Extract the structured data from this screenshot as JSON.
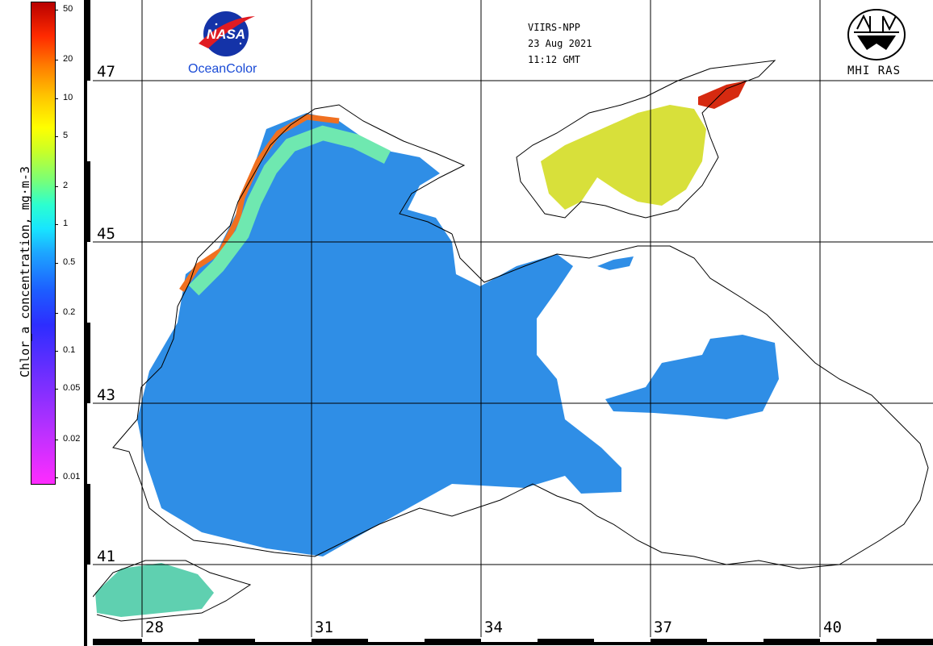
{
  "header": {
    "sensor": "VIIRS-NPP",
    "date": "23 Aug 2021",
    "time": "11:12 GMT"
  },
  "logos": {
    "left_caption": "OceanColor",
    "left_logo_text": "NASA",
    "right_caption": "MHI RAS"
  },
  "colorbar": {
    "title": "Chlor_a concentration, mg·m-3",
    "ticks": [
      "50",
      "20",
      "10",
      "5",
      "2",
      "1",
      "0.5",
      "0.2",
      "0.1",
      "0.05",
      "0.02",
      "0.01"
    ],
    "colors": [
      "#ff2cff",
      "#7f2fff",
      "#2d2dff",
      "#1da6ff",
      "#2cffcf",
      "#c8ff28",
      "#ffff00",
      "#ff7a00",
      "#b80000"
    ]
  },
  "grid": {
    "latitudes": [
      "47",
      "45",
      "43",
      "41"
    ],
    "longitudes": [
      "28",
      "31",
      "34",
      "37",
      "40"
    ]
  },
  "palette": {
    "sea_blue": "#2f8ee6",
    "coastal_green": "#5fe0c0",
    "azov_yellow": "#d8e03a",
    "high_red": "#d62a10"
  }
}
